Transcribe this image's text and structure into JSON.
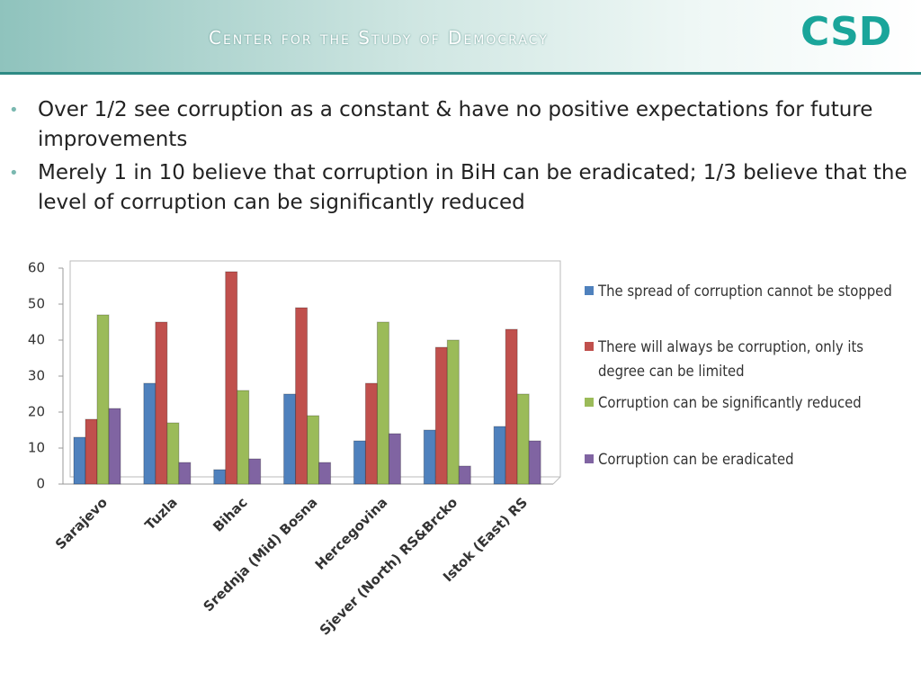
{
  "header": {
    "title": "Center for the Study of Democracy",
    "logo": "CSD"
  },
  "bullets": [
    "Over 1/2 see corruption as a constant & have no positive expectations for future improvements",
    "Merely 1 in 10 believe that corruption in BiH can be eradicated; 1/3 believe that the level of corruption can be significantly reduced"
  ],
  "chart_data": {
    "type": "bar",
    "categories": [
      "Sarajevo",
      "Tuzla",
      "Bihac",
      "Srednja (Mid) Bosna",
      "Hercegovina",
      "Sjever (North) RS&Brcko",
      "Istok (East) RS"
    ],
    "series": [
      {
        "name": "The spread of corruption cannot be stopped",
        "color": "#4f81bd",
        "values": [
          13,
          28,
          4,
          25,
          12,
          15,
          16
        ]
      },
      {
        "name": "There will always be corruption, only its degree can be limited",
        "color": "#c0504d",
        "values": [
          18,
          45,
          59,
          49,
          28,
          38,
          43
        ]
      },
      {
        "name": "Corruption can be significantly reduced",
        "color": "#9bbb59",
        "values": [
          47,
          17,
          26,
          19,
          45,
          40,
          25
        ]
      },
      {
        "name": "Corruption can be eradicated",
        "color": "#8064a2",
        "values": [
          21,
          6,
          7,
          6,
          14,
          5,
          12
        ]
      }
    ],
    "ylim": [
      0,
      60
    ],
    "yticks": [
      0,
      10,
      20,
      30,
      40,
      50,
      60
    ],
    "grid": false,
    "legend": "right"
  }
}
